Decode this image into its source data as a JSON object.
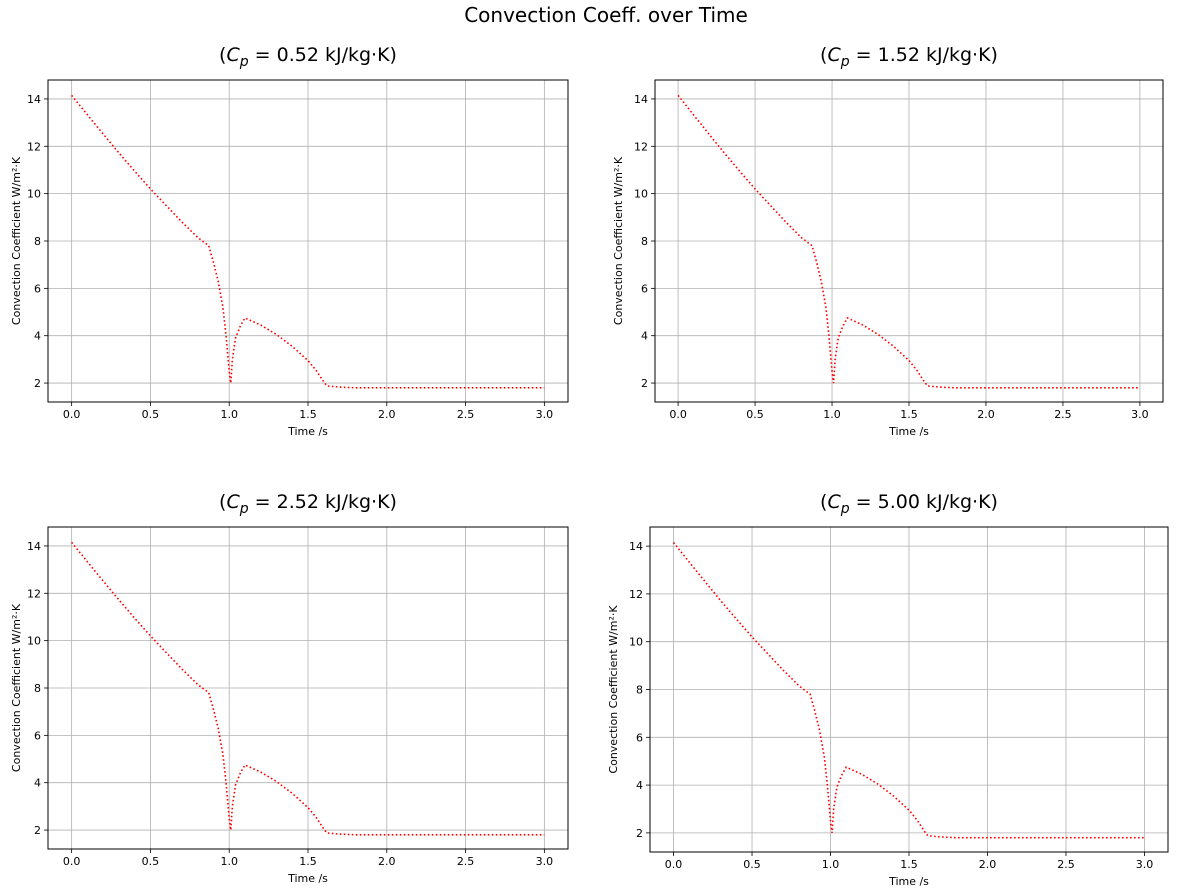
{
  "figure": {
    "title": "Convection Coeff. over Time"
  },
  "chart_data": [
    {
      "type": "line",
      "title_prefix": "(",
      "title_var": "C",
      "title_sub": "p",
      "title_suffix": " = 0.52 kJ/kg·K)",
      "xlabel": "Time /s",
      "ylabel": "Convection Coefficient W/m²·K",
      "xlim": [
        -0.15,
        3.15
      ],
      "ylim": [
        1.2,
        14.8
      ],
      "xticks": [
        0.0,
        0.5,
        1.0,
        1.5,
        2.0,
        2.5,
        3.0
      ],
      "xtick_labels": [
        "0.0",
        "0.5",
        "1.0",
        "1.5",
        "2.0",
        "2.5",
        "3.0"
      ],
      "yticks": [
        2,
        4,
        6,
        8,
        10,
        12,
        14
      ],
      "ytick_labels": [
        "2",
        "4",
        "6",
        "8",
        "10",
        "12",
        "14"
      ],
      "grid": true,
      "series": [
        {
          "color": "#ff0000",
          "linestyle": "dotted",
          "x": [
            0.0,
            0.1,
            0.2,
            0.3,
            0.4,
            0.5,
            0.6,
            0.7,
            0.8,
            0.87,
            0.9,
            0.93,
            0.96,
            0.98,
            1.0,
            1.01,
            1.02,
            1.04,
            1.07,
            1.1,
            1.2,
            1.3,
            1.4,
            1.5,
            1.55,
            1.6,
            1.62,
            1.65,
            1.7,
            1.8,
            2.0,
            2.5,
            3.0
          ],
          "y": [
            14.15,
            13.33,
            12.52,
            11.72,
            10.95,
            10.2,
            9.5,
            8.8,
            8.15,
            7.8,
            7.1,
            6.3,
            5.2,
            4.0,
            2.5,
            2.0,
            3.0,
            3.9,
            4.4,
            4.75,
            4.45,
            4.05,
            3.55,
            2.95,
            2.55,
            2.05,
            1.88,
            1.86,
            1.83,
            1.8,
            1.8,
            1.8,
            1.8
          ]
        }
      ]
    },
    {
      "type": "line",
      "title_prefix": "(",
      "title_var": "C",
      "title_sub": "p",
      "title_suffix": " = 1.52 kJ/kg·K)",
      "xlabel": "Time /s",
      "ylabel": "Convection Coefficient W/m²·K",
      "xlim": [
        -0.15,
        3.15
      ],
      "ylim": [
        1.2,
        14.8
      ],
      "xticks": [
        0.0,
        0.5,
        1.0,
        1.5,
        2.0,
        2.5,
        3.0
      ],
      "xtick_labels": [
        "0.0",
        "0.5",
        "1.0",
        "1.5",
        "2.0",
        "2.5",
        "3.0"
      ],
      "yticks": [
        2,
        4,
        6,
        8,
        10,
        12,
        14
      ],
      "ytick_labels": [
        "2",
        "4",
        "6",
        "8",
        "10",
        "12",
        "14"
      ],
      "grid": true,
      "series": [
        {
          "color": "#ff0000",
          "linestyle": "dotted",
          "x": [
            0.0,
            0.1,
            0.2,
            0.3,
            0.4,
            0.5,
            0.6,
            0.7,
            0.8,
            0.87,
            0.9,
            0.93,
            0.96,
            0.98,
            1.0,
            1.01,
            1.02,
            1.04,
            1.07,
            1.1,
            1.2,
            1.3,
            1.4,
            1.5,
            1.55,
            1.6,
            1.62,
            1.65,
            1.7,
            1.8,
            2.0,
            2.5,
            3.0
          ],
          "y": [
            14.15,
            13.33,
            12.52,
            11.72,
            10.95,
            10.2,
            9.5,
            8.8,
            8.15,
            7.8,
            7.1,
            6.3,
            5.2,
            4.0,
            2.5,
            2.0,
            3.0,
            3.9,
            4.4,
            4.75,
            4.45,
            4.05,
            3.55,
            2.95,
            2.55,
            2.05,
            1.88,
            1.86,
            1.83,
            1.8,
            1.8,
            1.8,
            1.8
          ]
        }
      ]
    },
    {
      "type": "line",
      "title_prefix": "(",
      "title_var": "C",
      "title_sub": "p",
      "title_suffix": " = 2.52 kJ/kg·K)",
      "xlabel": "Time /s",
      "ylabel": "Convection Coefficient W/m²·K",
      "xlim": [
        -0.15,
        3.15
      ],
      "ylim": [
        1.2,
        14.8
      ],
      "xticks": [
        0.0,
        0.5,
        1.0,
        1.5,
        2.0,
        2.5,
        3.0
      ],
      "xtick_labels": [
        "0.0",
        "0.5",
        "1.0",
        "1.5",
        "2.0",
        "2.5",
        "3.0"
      ],
      "yticks": [
        2,
        4,
        6,
        8,
        10,
        12,
        14
      ],
      "ytick_labels": [
        "2",
        "4",
        "6",
        "8",
        "10",
        "12",
        "14"
      ],
      "grid": true,
      "series": [
        {
          "color": "#ff0000",
          "linestyle": "dotted",
          "x": [
            0.0,
            0.1,
            0.2,
            0.3,
            0.4,
            0.5,
            0.6,
            0.7,
            0.8,
            0.87,
            0.9,
            0.93,
            0.96,
            0.98,
            1.0,
            1.01,
            1.02,
            1.04,
            1.07,
            1.1,
            1.2,
            1.3,
            1.4,
            1.5,
            1.55,
            1.6,
            1.62,
            1.65,
            1.7,
            1.8,
            2.0,
            2.5,
            3.0
          ],
          "y": [
            14.15,
            13.33,
            12.52,
            11.72,
            10.95,
            10.2,
            9.5,
            8.8,
            8.15,
            7.8,
            7.1,
            6.3,
            5.2,
            4.0,
            2.5,
            2.0,
            3.0,
            3.9,
            4.4,
            4.75,
            4.45,
            4.05,
            3.55,
            2.95,
            2.55,
            2.05,
            1.88,
            1.86,
            1.83,
            1.8,
            1.8,
            1.8,
            1.8
          ]
        }
      ]
    },
    {
      "type": "line",
      "title_prefix": "(",
      "title_var": "C",
      "title_sub": "p",
      "title_suffix": " = 5.00 kJ/kg·K)",
      "xlabel": "Time /s",
      "ylabel": "Convection Coefficient W/m²·K",
      "xlim": [
        -0.15,
        3.15
      ],
      "ylim": [
        1.2,
        14.8
      ],
      "xticks": [
        0.0,
        0.5,
        1.0,
        1.5,
        2.0,
        2.5,
        3.0
      ],
      "xtick_labels": [
        "0.0",
        "0.5",
        "1.0",
        "1.5",
        "2.0",
        "2.5",
        "3.0"
      ],
      "yticks": [
        2,
        4,
        6,
        8,
        10,
        12,
        14
      ],
      "ytick_labels": [
        "2",
        "4",
        "6",
        "8",
        "10",
        "12",
        "14"
      ],
      "grid": true,
      "series": [
        {
          "color": "#ff0000",
          "linestyle": "dotted",
          "x": [
            0.0,
            0.1,
            0.2,
            0.3,
            0.4,
            0.5,
            0.6,
            0.7,
            0.8,
            0.87,
            0.9,
            0.93,
            0.96,
            0.98,
            1.0,
            1.01,
            1.02,
            1.04,
            1.07,
            1.1,
            1.2,
            1.3,
            1.4,
            1.5,
            1.55,
            1.6,
            1.62,
            1.65,
            1.7,
            1.8,
            2.0,
            2.5,
            3.0
          ],
          "y": [
            14.15,
            13.33,
            12.52,
            11.72,
            10.95,
            10.2,
            9.5,
            8.8,
            8.15,
            7.8,
            7.1,
            6.3,
            5.2,
            4.0,
            2.5,
            2.0,
            3.0,
            3.9,
            4.4,
            4.75,
            4.45,
            4.05,
            3.55,
            2.95,
            2.55,
            2.05,
            1.88,
            1.86,
            1.83,
            1.8,
            1.8,
            1.8,
            1.8
          ]
        }
      ]
    }
  ]
}
